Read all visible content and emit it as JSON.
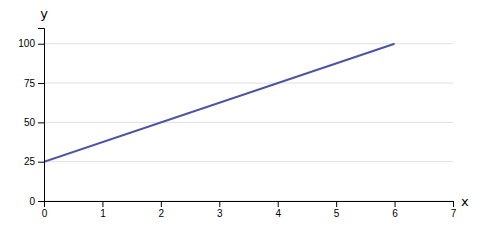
{
  "chart_data": {
    "type": "line",
    "x": [
      0,
      6
    ],
    "values": [
      25,
      100
    ],
    "color": "#4a54a0",
    "xlim": [
      0,
      7
    ],
    "ylim": [
      0,
      110
    ],
    "xticks": [
      0,
      1,
      2,
      3,
      4,
      5,
      6,
      7
    ],
    "yticks": [
      0,
      25,
      50,
      75,
      100
    ],
    "xlabel": "x",
    "ylabel": "y",
    "grid": "y"
  }
}
